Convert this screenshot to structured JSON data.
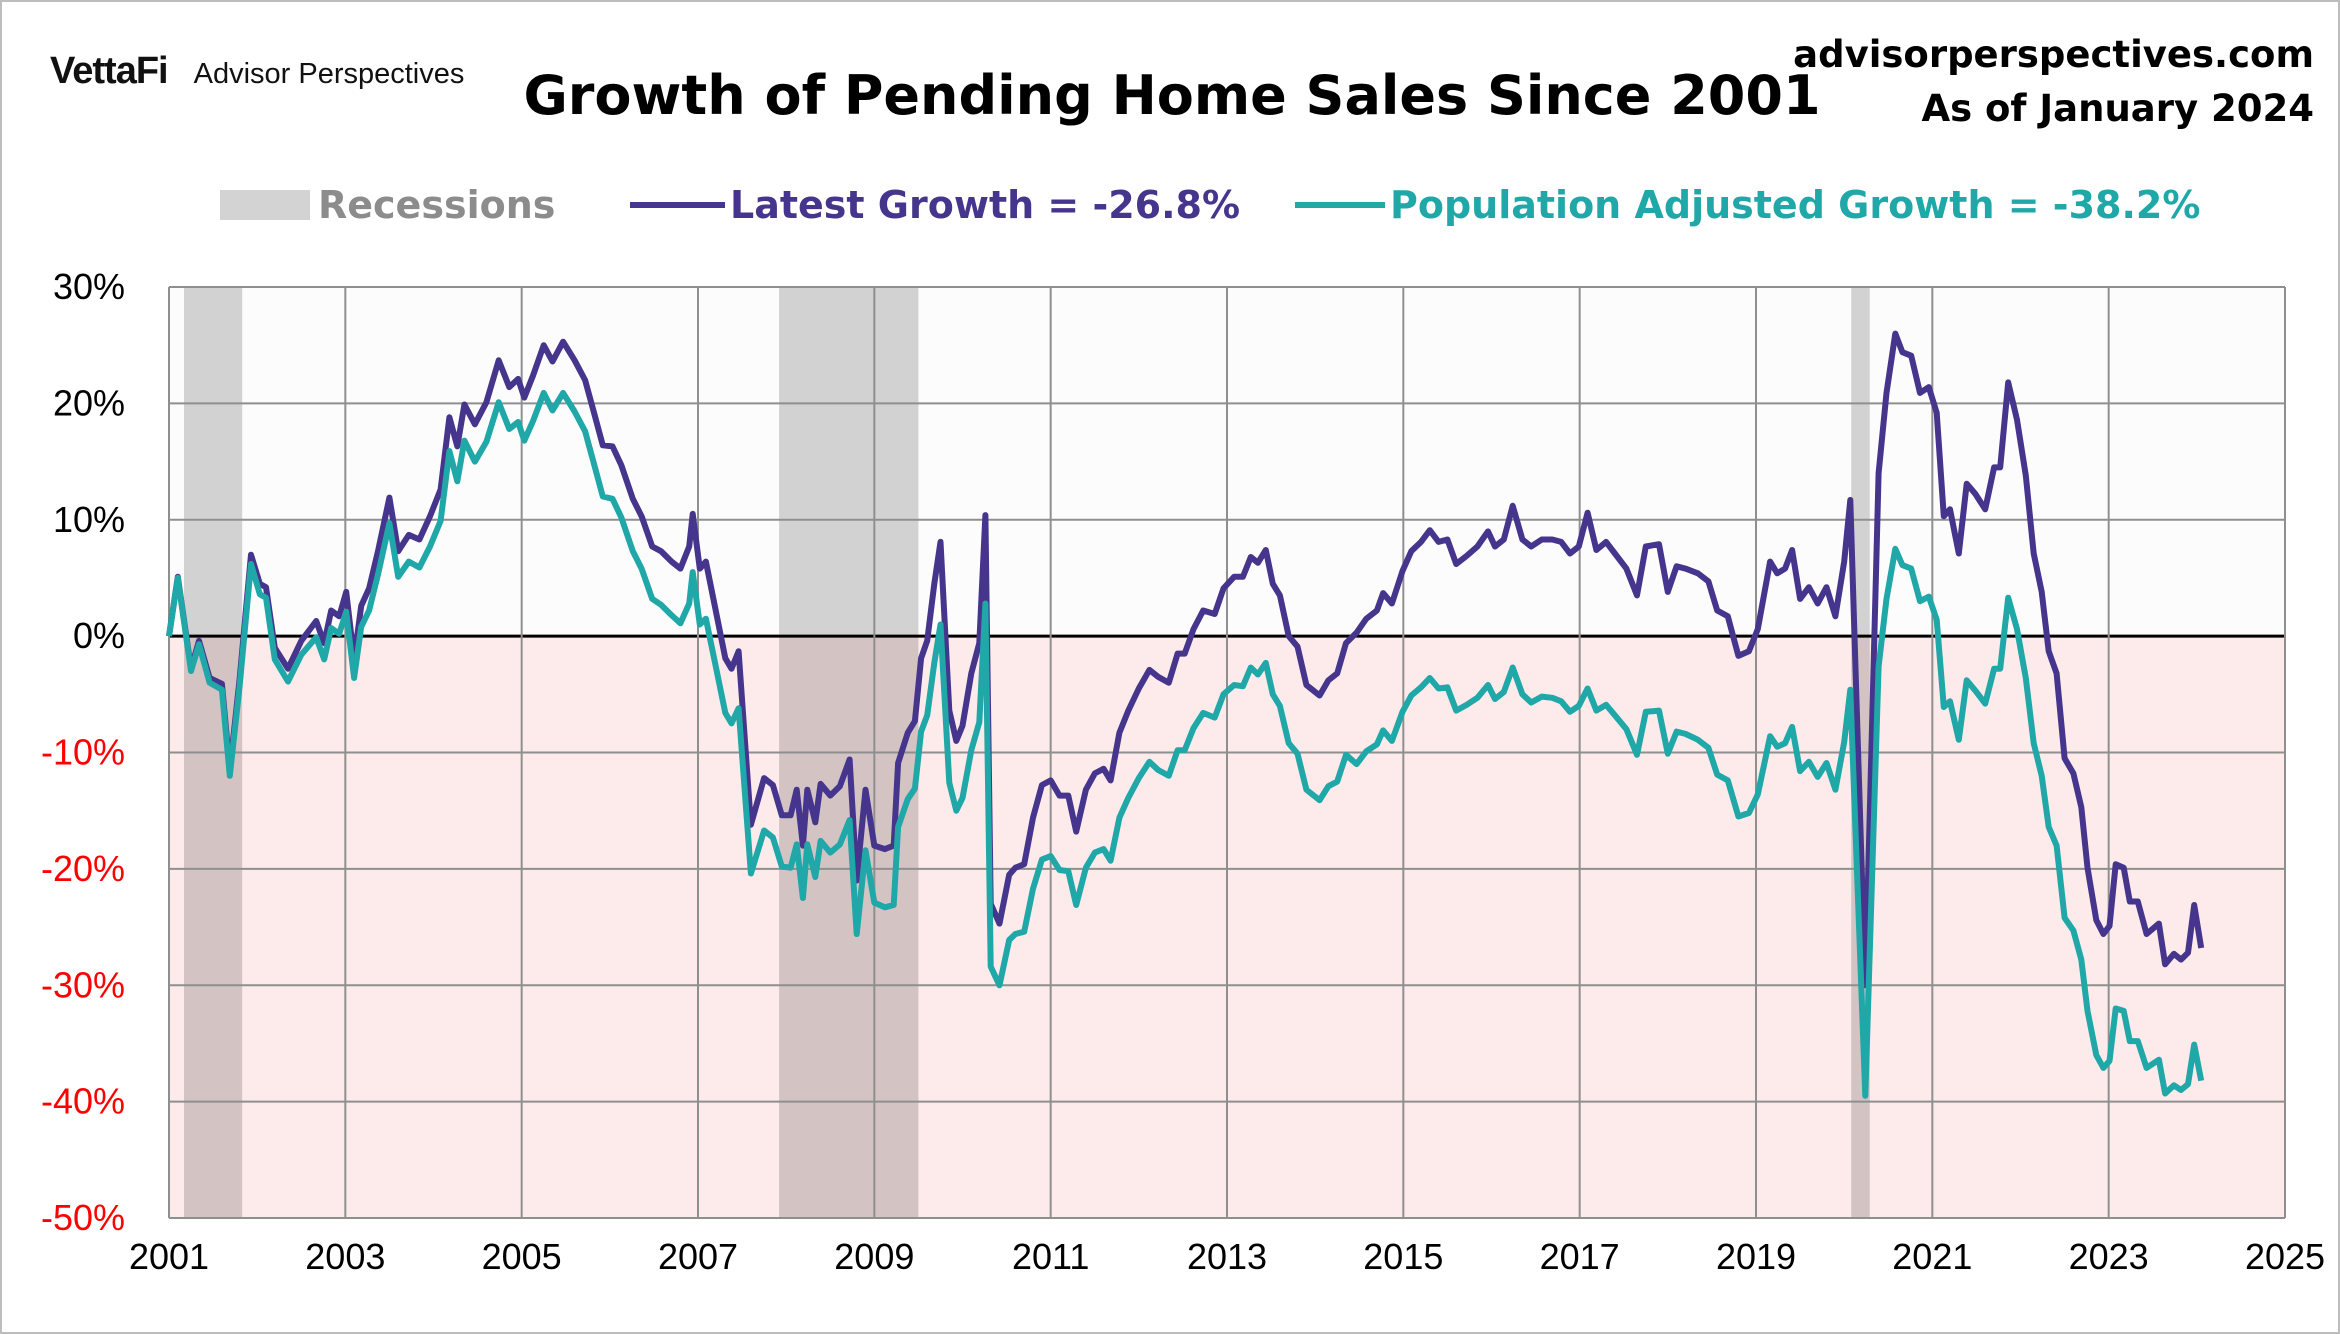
{
  "header": {
    "logo_brand": "VettaFi",
    "logo_name": "Advisor Perspectives",
    "source": "advisorperspectives.com",
    "as_of": "As of January 2024"
  },
  "colors": {
    "latest": "#46358c",
    "population_adjusted": "#20a7a8",
    "recession": "#d3d3d3",
    "positive_bg": "#fcfcfc",
    "negative_bg": "#fdeaea",
    "negative_tick": "#ff0000"
  },
  "chart_data": {
    "type": "line",
    "title": "Growth of Pending Home Sales Since 2001",
    "xlabel": "",
    "ylabel": "",
    "xlim": [
      2001,
      2025
    ],
    "ylim": [
      -50,
      30
    ],
    "grid": true,
    "legend_position": "top",
    "x_ticks": [
      "2001",
      "2003",
      "2005",
      "2007",
      "2009",
      "2011",
      "2013",
      "2015",
      "2017",
      "2019",
      "2021",
      "2023",
      "2025"
    ],
    "y_ticks": [
      "30%",
      "20%",
      "10%",
      "0%",
      "-10%",
      "-20%",
      "-30%",
      "-40%",
      "-50%"
    ],
    "recessions": {
      "name": "Recessions",
      "periods": [
        [
          2001.17,
          2001.83
        ],
        [
          2007.92,
          2009.5
        ],
        [
          2020.08,
          2020.29
        ]
      ]
    },
    "x": [
      2001.0,
      2001.1,
      2001.25,
      2001.34,
      2001.46,
      2001.6,
      2001.69,
      2001.8,
      2001.93,
      2002.03,
      2002.1,
      2002.2,
      2002.35,
      2002.5,
      2002.67,
      2002.76,
      2002.84,
      2002.93,
      2003.01,
      2003.1,
      2003.18,
      2003.27,
      2003.37,
      2003.5,
      2003.6,
      2003.72,
      2003.84,
      2003.96,
      2004.08,
      2004.18,
      2004.27,
      2004.35,
      2004.47,
      2004.6,
      2004.74,
      2004.86,
      2004.96,
      2005.03,
      2005.13,
      2005.25,
      2005.35,
      2005.47,
      2005.6,
      2005.72,
      2005.82,
      2005.92,
      2006.03,
      2006.13,
      2006.26,
      2006.36,
      2006.48,
      2006.58,
      2006.7,
      2006.8,
      2006.9,
      2006.94,
      2007.02,
      2007.09,
      2007.19,
      2007.31,
      2007.38,
      2007.46,
      2007.6,
      2007.75,
      2007.85,
      2007.95,
      2008.05,
      2008.12,
      2008.19,
      2008.24,
      2008.33,
      2008.39,
      2008.5,
      2008.61,
      2008.72,
      2008.8,
      2008.9,
      2009.0,
      2009.12,
      2009.22,
      2009.27,
      2009.38,
      2009.46,
      2009.53,
      2009.6,
      2009.68,
      2009.75,
      2009.85,
      2009.93,
      2010.0,
      2010.1,
      2010.19,
      2010.26,
      2010.32,
      2010.42,
      2010.53,
      2010.6,
      2010.7,
      2010.8,
      2010.9,
      2011.0,
      2011.1,
      2011.2,
      2011.29,
      2011.4,
      2011.5,
      2011.6,
      2011.68,
      2011.78,
      2011.88,
      2012.0,
      2012.12,
      2012.22,
      2012.34,
      2012.44,
      2012.52,
      2012.62,
      2012.73,
      2012.86,
      2012.96,
      2013.08,
      2013.18,
      2013.27,
      2013.35,
      2013.44,
      2013.52,
      2013.6,
      2013.7,
      2013.8,
      2013.9,
      2014.05,
      2014.15,
      2014.25,
      2014.35,
      2014.47,
      2014.58,
      2014.7,
      2014.77,
      2014.87,
      2014.99,
      2015.09,
      2015.2,
      2015.3,
      2015.4,
      2015.5,
      2015.6,
      2015.72,
      2015.84,
      2015.96,
      2016.04,
      2016.14,
      2016.24,
      2016.35,
      2016.45,
      2016.57,
      2016.69,
      2016.79,
      2016.89,
      2016.99,
      2017.09,
      2017.19,
      2017.3,
      2017.4,
      2017.53,
      2017.65,
      2017.75,
      2017.9,
      2018.0,
      2018.1,
      2018.2,
      2018.34,
      2018.46,
      2018.56,
      2018.68,
      2018.8,
      2018.92,
      2019.02,
      2019.16,
      2019.24,
      2019.33,
      2019.41,
      2019.5,
      2019.6,
      2019.7,
      2019.8,
      2019.9,
      2020.0,
      2020.07,
      2020.24,
      2020.39,
      2020.48,
      2020.58,
      2020.66,
      2020.76,
      2020.86,
      2020.96,
      2021.05,
      2021.13,
      2021.2,
      2021.3,
      2021.39,
      2021.49,
      2021.6,
      2021.7,
      2021.77,
      2021.86,
      2021.96,
      2022.06,
      2022.15,
      2022.24,
      2022.32,
      2022.41,
      2022.5,
      2022.6,
      2022.69,
      2022.76,
      2022.86,
      2022.94,
      2023.01,
      2023.08,
      2023.17,
      2023.24,
      2023.33,
      2023.43,
      2023.57,
      2023.64,
      2023.74,
      2023.82,
      2023.9,
      2023.97,
      2024.05
    ],
    "series": [
      {
        "name": "Latest Growth = -26.8%",
        "values": [
          0,
          5.1,
          -2.8,
          -0.4,
          -3.6,
          -4.1,
          -11.5,
          -3.8,
          7,
          4.5,
          4.2,
          -1,
          -2.8,
          -0.4,
          1.3,
          -0.6,
          2.2,
          1.7,
          3.8,
          -2,
          2.6,
          4.1,
          7.3,
          11.9,
          7.3,
          8.7,
          8.3,
          10.3,
          12.6,
          18.8,
          16.3,
          19.9,
          18.2,
          20.1,
          23.7,
          21.4,
          22.1,
          20.5,
          22.4,
          25,
          23.6,
          25.3,
          23.7,
          22,
          19.2,
          16.4,
          16.3,
          14.7,
          11.8,
          10.3,
          7.7,
          7.3,
          6.4,
          5.8,
          7.7,
          10.5,
          5.8,
          6.4,
          2.6,
          -1.9,
          -2.8,
          -1.3,
          -16.2,
          -12.2,
          -12.8,
          -15.4,
          -15.4,
          -13.2,
          -18,
          -13.2,
          -16,
          -12.7,
          -13.7,
          -12.9,
          -10.6,
          -21,
          -13.2,
          -18,
          -18.3,
          -18,
          -10.9,
          -8.3,
          -7.3,
          -1.9,
          -0.4,
          4.5,
          8.1,
          -6.4,
          -9,
          -7.7,
          -3.2,
          -0.6,
          10.4,
          -23,
          -24.7,
          -20.5,
          -19.9,
          -19.6,
          -15.6,
          -12.8,
          -12.4,
          -13.7,
          -13.7,
          -16.8,
          -13.2,
          -11.8,
          -11.4,
          -12.4,
          -8.3,
          -6.4,
          -4.5,
          -2.9,
          -3.5,
          -4,
          -1.5,
          -1.5,
          0.6,
          2.2,
          1.9,
          4.1,
          5.1,
          5.1,
          6.8,
          6.3,
          7.4,
          4.5,
          3.5,
          0,
          -0.9,
          -4.2,
          -5.1,
          -3.8,
          -3.2,
          -0.6,
          0.3,
          1.5,
          2.2,
          3.7,
          2.8,
          5.6,
          7.3,
          8.1,
          9.1,
          8.1,
          8.3,
          6.2,
          6.9,
          7.7,
          9,
          7.7,
          8.3,
          11.2,
          8.3,
          7.7,
          8.3,
          8.3,
          8.1,
          7.1,
          7.7,
          10.6,
          7.4,
          8.1,
          7.1,
          5.8,
          3.5,
          7.7,
          7.9,
          3.8,
          6,
          5.8,
          5.4,
          4.7,
          2.2,
          1.7,
          -1.7,
          -1.3,
          0.6,
          6.4,
          5.4,
          5.8,
          7.4,
          3.2,
          4.2,
          2.8,
          4.2,
          1.7,
          6.4,
          11.7,
          -30,
          14,
          20.9,
          26,
          24.4,
          24.1,
          20.9,
          21.4,
          19.2,
          10.3,
          10.9,
          7.1,
          13.1,
          12.2,
          10.9,
          14.5,
          14.5,
          21.8,
          18.6,
          13.8,
          7.1,
          3.8,
          -1.3,
          -3.2,
          -10.5,
          -11.8,
          -14.7,
          -19.9,
          -24.4,
          -25.6,
          -24.9,
          -19.6,
          -19.9,
          -22.8,
          -22.8,
          -25.6,
          -24.7,
          -28.2,
          -27.3,
          -27.8,
          -27.2,
          -23.1,
          -26.8
        ]
      },
      {
        "name": "Population Adjusted Growth = -38.2%",
        "values": [
          0,
          5,
          -3,
          -0.7,
          -4,
          -4.6,
          -12,
          -4.4,
          6.2,
          3.6,
          3.3,
          -2,
          -3.9,
          -1.6,
          -0.1,
          -2,
          0.7,
          0.2,
          2.1,
          -3.6,
          0.8,
          2.2,
          5.3,
          9.7,
          5.1,
          6.4,
          5.9,
          7.7,
          9.9,
          15.9,
          13.3,
          16.8,
          15,
          16.7,
          20.1,
          17.8,
          18.4,
          16.8,
          18.5,
          20.9,
          19.4,
          20.9,
          19.3,
          17.6,
          14.8,
          12,
          11.8,
          10.2,
          7.3,
          5.8,
          3.2,
          2.7,
          1.8,
          1.1,
          2.8,
          5.5,
          1,
          1.5,
          -2.2,
          -6.6,
          -7.5,
          -6.2,
          -20.4,
          -16.7,
          -17.3,
          -19.8,
          -19.9,
          -17.9,
          -22.5,
          -17.9,
          -20.7,
          -17.6,
          -18.6,
          -17.9,
          -15.8,
          -25.6,
          -18.4,
          -22.9,
          -23.3,
          -23.1,
          -16.4,
          -14,
          -13.1,
          -8.2,
          -6.8,
          -2.3,
          1,
          -12.6,
          -15,
          -13.9,
          -9.8,
          -7.4,
          2.8,
          -28.4,
          -30,
          -26.1,
          -25.6,
          -25.4,
          -21.7,
          -19.2,
          -18.9,
          -20.1,
          -20.2,
          -23.1,
          -19.9,
          -18.6,
          -18.3,
          -19.3,
          -15.6,
          -13.9,
          -12.2,
          -10.8,
          -11.5,
          -12,
          -9.8,
          -9.8,
          -7.9,
          -6.6,
          -7,
          -5,
          -4.2,
          -4.3,
          -2.7,
          -3.3,
          -2.3,
          -5,
          -6,
          -9.2,
          -10.1,
          -13.2,
          -14.1,
          -12.9,
          -12.5,
          -10.2,
          -11,
          -9.9,
          -9.3,
          -8.1,
          -9,
          -6.5,
          -5.1,
          -4.4,
          -3.6,
          -4.5,
          -4.4,
          -6.4,
          -5.9,
          -5.3,
          -4.2,
          -5.4,
          -4.8,
          -2.7,
          -5,
          -5.7,
          -5.2,
          -5.3,
          -5.6,
          -6.5,
          -6,
          -4.5,
          -6.4,
          -5.9,
          -6.8,
          -8,
          -10.2,
          -6.5,
          -6.4,
          -10.1,
          -8.2,
          -8.4,
          -8.9,
          -9.6,
          -11.9,
          -12.4,
          -15.5,
          -15.2,
          -13.6,
          -8.6,
          -9.5,
          -9.2,
          -7.8,
          -11.6,
          -10.8,
          -12.1,
          -10.9,
          -13.2,
          -9.1,
          -4.6,
          -39.5,
          -2.6,
          3.2,
          7.5,
          6.1,
          5.8,
          3,
          3.4,
          1.4,
          -6.1,
          -5.6,
          -8.9,
          -3.8,
          -4.7,
          -5.8,
          -2.8,
          -2.8,
          3.3,
          0.6,
          -3.6,
          -9.2,
          -12,
          -16.4,
          -18,
          -24.2,
          -25.3,
          -27.8,
          -32.2,
          -36,
          -37.1,
          -36.5,
          -32,
          -32.2,
          -34.8,
          -34.8,
          -37.1,
          -36.4,
          -39.3,
          -38.6,
          -39,
          -38.5,
          -35.1,
          -38.2
        ]
      }
    ]
  }
}
